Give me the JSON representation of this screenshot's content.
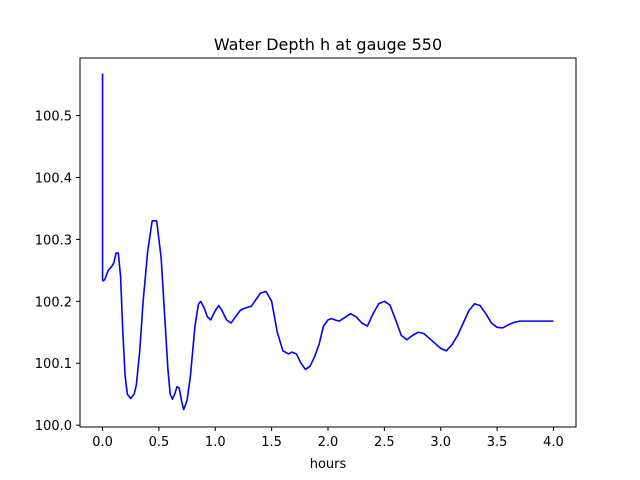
{
  "chart_data": {
    "type": "line",
    "title": "Water Depth h at gauge 550",
    "xlabel": "hours",
    "ylabel": "",
    "xlim": [
      -0.2,
      4.2
    ],
    "ylim": [
      99.997,
      100.593
    ],
    "xticks": [
      0.0,
      0.5,
      1.0,
      1.5,
      2.0,
      2.5,
      3.0,
      3.5,
      4.0
    ],
    "xtick_labels": [
      "0.0",
      "0.5",
      "1.0",
      "1.5",
      "2.0",
      "2.5",
      "3.0",
      "3.5",
      "4.0"
    ],
    "yticks": [
      100.0,
      100.1,
      100.2,
      100.3,
      100.4,
      100.5
    ],
    "ytick_labels": [
      "100.0",
      "100.1",
      "100.2",
      "100.3",
      "100.4",
      "100.5"
    ],
    "grid": false,
    "series": [
      {
        "color": "#0000ff",
        "x": [
          0.0,
          0.0,
          0.005,
          0.02,
          0.05,
          0.08,
          0.1,
          0.12,
          0.14,
          0.16,
          0.18,
          0.2,
          0.22,
          0.25,
          0.28,
          0.3,
          0.33,
          0.36,
          0.4,
          0.44,
          0.48,
          0.52,
          0.55,
          0.58,
          0.6,
          0.62,
          0.64,
          0.66,
          0.68,
          0.7,
          0.72,
          0.75,
          0.78,
          0.8,
          0.82,
          0.85,
          0.87,
          0.9,
          0.93,
          0.96,
          1.0,
          1.03,
          1.06,
          1.1,
          1.14,
          1.18,
          1.22,
          1.25,
          1.28,
          1.32,
          1.35,
          1.4,
          1.45,
          1.5,
          1.55,
          1.6,
          1.65,
          1.68,
          1.72,
          1.76,
          1.8,
          1.84,
          1.88,
          1.92,
          1.96,
          2.0,
          2.03,
          2.06,
          2.1,
          2.15,
          2.2,
          2.25,
          2.3,
          2.35,
          2.4,
          2.45,
          2.5,
          2.55,
          2.6,
          2.65,
          2.7,
          2.75,
          2.8,
          2.85,
          2.9,
          2.95,
          3.0,
          3.05,
          3.1,
          3.15,
          3.2,
          3.25,
          3.3,
          3.35,
          3.4,
          3.45,
          3.5,
          3.55,
          3.6,
          3.65,
          3.7,
          3.75,
          3.8,
          3.85,
          3.9,
          3.95,
          4.0
        ],
        "y": [
          100.568,
          100.235,
          100.233,
          100.235,
          100.25,
          100.256,
          100.262,
          100.278,
          100.278,
          100.24,
          100.15,
          100.08,
          100.05,
          100.043,
          100.05,
          100.065,
          100.12,
          100.2,
          100.28,
          100.33,
          100.33,
          100.27,
          100.18,
          100.09,
          100.05,
          100.042,
          100.05,
          100.062,
          100.06,
          100.04,
          100.025,
          100.04,
          100.08,
          100.12,
          100.16,
          100.195,
          100.2,
          100.19,
          100.175,
          100.17,
          100.185,
          100.193,
          100.185,
          100.17,
          100.165,
          100.175,
          100.185,
          100.188,
          100.19,
          100.192,
          100.2,
          100.213,
          100.216,
          100.2,
          100.15,
          100.12,
          100.115,
          100.118,
          100.115,
          100.1,
          100.09,
          100.095,
          100.11,
          100.13,
          100.16,
          100.17,
          100.172,
          100.17,
          100.168,
          100.174,
          100.18,
          100.175,
          100.165,
          100.16,
          100.18,
          100.196,
          100.2,
          100.194,
          100.17,
          100.145,
          100.138,
          100.145,
          100.15,
          100.148,
          100.14,
          100.132,
          100.124,
          100.12,
          100.13,
          100.145,
          100.165,
          100.185,
          100.196,
          100.193,
          100.18,
          100.165,
          100.158,
          100.157,
          100.162,
          100.166,
          100.168,
          100.168,
          100.168,
          100.168,
          100.168,
          100.168,
          100.168
        ]
      }
    ]
  }
}
